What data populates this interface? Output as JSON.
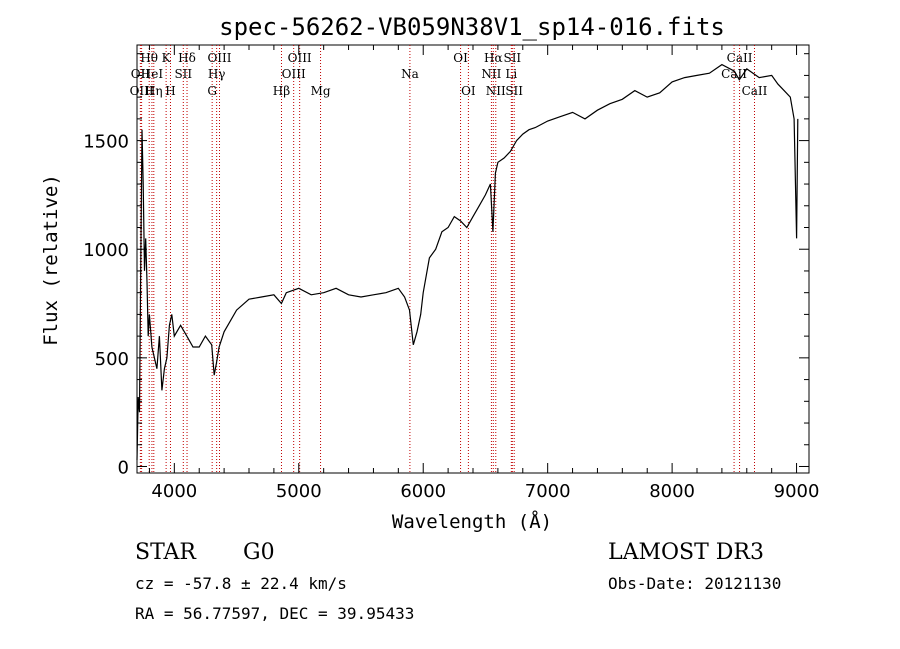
{
  "chart_data": {
    "type": "line",
    "title": "spec-56262-VB059N38V1_sp14-016.fits",
    "xlabel": "Wavelength (Å)",
    "ylabel": "Flux (relative)",
    "xlim": [
      3700,
      9100
    ],
    "ylim": [
      -30,
      1940
    ],
    "xticks": [
      4000,
      5000,
      6000,
      7000,
      8000,
      9000
    ],
    "yticks": [
      0,
      500,
      1000,
      1500
    ],
    "series": [
      {
        "name": "flux",
        "x": [
          3700,
          3710,
          3720,
          3730,
          3740,
          3750,
          3760,
          3770,
          3780,
          3790,
          3800,
          3820,
          3840,
          3860,
          3880,
          3900,
          3920,
          3940,
          3960,
          3980,
          4000,
          4050,
          4100,
          4150,
          4200,
          4250,
          4300,
          4320,
          4340,
          4360,
          4400,
          4500,
          4600,
          4700,
          4800,
          4860,
          4900,
          5000,
          5100,
          5200,
          5300,
          5400,
          5500,
          5600,
          5700,
          5800,
          5850,
          5890,
          5920,
          5950,
          5980,
          6000,
          6050,
          6100,
          6150,
          6200,
          6250,
          6300,
          6350,
          6400,
          6450,
          6500,
          6540,
          6560,
          6580,
          6600,
          6650,
          6700,
          6750,
          6800,
          6850,
          6900,
          7000,
          7100,
          7200,
          7300,
          7400,
          7500,
          7600,
          7700,
          7800,
          7900,
          8000,
          8100,
          8200,
          8300,
          8400,
          8500,
          8540,
          8600,
          8700,
          8800,
          8850,
          8900,
          8950,
          8980,
          9000,
          9010
        ],
        "values": [
          30,
          320,
          250,
          900,
          1550,
          1300,
          900,
          1050,
          850,
          600,
          700,
          550,
          500,
          450,
          600,
          350,
          450,
          500,
          650,
          700,
          600,
          650,
          600,
          550,
          550,
          600,
          560,
          420,
          480,
          550,
          620,
          720,
          770,
          780,
          790,
          750,
          800,
          820,
          790,
          800,
          820,
          790,
          780,
          790,
          800,
          820,
          780,
          720,
          560,
          620,
          700,
          800,
          960,
          1000,
          1080,
          1100,
          1150,
          1130,
          1100,
          1150,
          1200,
          1250,
          1300,
          1080,
          1350,
          1400,
          1420,
          1450,
          1500,
          1530,
          1550,
          1560,
          1590,
          1610,
          1630,
          1600,
          1640,
          1670,
          1690,
          1730,
          1700,
          1720,
          1770,
          1790,
          1800,
          1810,
          1850,
          1820,
          1780,
          1830,
          1790,
          1800,
          1760,
          1730,
          1700,
          1600,
          1050,
          1600
        ]
      }
    ],
    "lines": [
      {
        "label": "Hθ",
        "x": 3798,
        "row": 1
      },
      {
        "label": "OII",
        "x": 3727,
        "row": 2
      },
      {
        "label": "OIII",
        "x": 3737,
        "row": 3
      },
      {
        "label": "HeI",
        "x": 3820,
        "row": 2
      },
      {
        "label": "Hη",
        "x": 3835,
        "row": 3
      },
      {
        "label": "K",
        "x": 3934,
        "row": 1
      },
      {
        "label": "SII",
        "x": 4072,
        "row": 2
      },
      {
        "label": "H",
        "x": 3969,
        "row": 3
      },
      {
        "label": "Hδ",
        "x": 4102,
        "row": 1
      },
      {
        "label": "OIII",
        "x": 4363,
        "row": 1
      },
      {
        "label": "Hγ",
        "x": 4340,
        "row": 2
      },
      {
        "label": "G",
        "x": 4304,
        "row": 3
      },
      {
        "label": "Hβ",
        "x": 4861,
        "row": 3
      },
      {
        "label": "OIII",
        "x": 5007,
        "row": 1
      },
      {
        "label": "OIII",
        "x": 4959,
        "row": 2
      },
      {
        "label": "Mg",
        "x": 5175,
        "row": 3
      },
      {
        "label": "Na",
        "x": 5893,
        "row": 2
      },
      {
        "label": "OI",
        "x": 6300,
        "row": 1
      },
      {
        "label": "OI",
        "x": 6363,
        "row": 3
      },
      {
        "label": "Hα",
        "x": 6563,
        "row": 1
      },
      {
        "label": "NII",
        "x": 6548,
        "row": 2
      },
      {
        "label": "NII",
        "x": 6583,
        "row": 3
      },
      {
        "label": "SII",
        "x": 6716,
        "row": 1
      },
      {
        "label": "Li",
        "x": 6708,
        "row": 2
      },
      {
        "label": "SII",
        "x": 6731,
        "row": 3
      },
      {
        "label": "CaII",
        "x": 8542,
        "row": 1
      },
      {
        "label": "CaII",
        "x": 8498,
        "row": 2
      },
      {
        "label": "CaII",
        "x": 8662,
        "row": 3
      }
    ]
  },
  "info": {
    "class_label": "STAR",
    "subclass": "G0",
    "survey": "LAMOST DR3",
    "redshift": "cz = -57.8 ± 22.4 km/s",
    "obs_date": "Obs-Date: 20121130",
    "coords": "RA =  56.77597, DEC =  39.95433"
  },
  "colors": {
    "line_marker": "#c00000",
    "spectrum": "#000000"
  }
}
